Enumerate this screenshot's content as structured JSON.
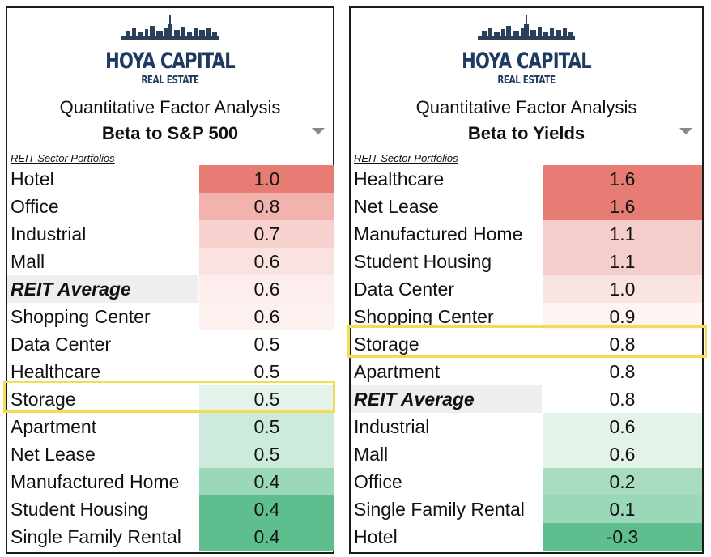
{
  "chart_data": [
    {
      "type": "table",
      "brand": {
        "name": "HOYA CAPITAL",
        "sub": "REAL ESTATE"
      },
      "title": "Quantitative Factor Analysis",
      "subtitle": "Beta to S&P 500",
      "section_label": "REIT Sector Portfolios",
      "highlighted": "Storage",
      "rows": [
        {
          "name": "Hotel",
          "value": "1.0",
          "color": "#e67c73"
        },
        {
          "name": "Office",
          "value": "0.8",
          "color": "#f2b3ae"
        },
        {
          "name": "Industrial",
          "value": "0.7",
          "color": "#f7d2cf"
        },
        {
          "name": "Mall",
          "value": "0.6",
          "color": "#fae2e0"
        },
        {
          "name": "REIT Average",
          "value": "0.6",
          "color": "#fdeeed",
          "average": true
        },
        {
          "name": "Shopping Center",
          "value": "0.6",
          "color": "#fdf1f0"
        },
        {
          "name": "Data Center",
          "value": "0.5",
          "color": "#ffffff"
        },
        {
          "name": "Healthcare",
          "value": "0.5",
          "color": "#ffffff"
        },
        {
          "name": "Storage",
          "value": "0.5",
          "color": "#e3f3ea"
        },
        {
          "name": "Apartment",
          "value": "0.5",
          "color": "#cdebdc"
        },
        {
          "name": "Net Lease",
          "value": "0.5",
          "color": "#cdebdc"
        },
        {
          "name": "Manufactured Home",
          "value": "0.4",
          "color": "#9bd7b9"
        },
        {
          "name": "Student Housing",
          "value": "0.4",
          "color": "#5fbe8e"
        },
        {
          "name": "Single Family Rental",
          "value": "0.4",
          "color": "#5fbe8e"
        }
      ]
    },
    {
      "type": "table",
      "brand": {
        "name": "HOYA CAPITAL",
        "sub": "REAL ESTATE"
      },
      "title": "Quantitative Factor Analysis",
      "subtitle": "Beta to Yields",
      "section_label": "REIT Sector Portfolios",
      "highlighted": "Storage",
      "rows": [
        {
          "name": "Healthcare",
          "value": "1.6",
          "color": "#e67c73"
        },
        {
          "name": "Net Lease",
          "value": "1.6",
          "color": "#e67c73"
        },
        {
          "name": "Manufactured Home",
          "value": "1.1",
          "color": "#f5cdca"
        },
        {
          "name": "Student Housing",
          "value": "1.1",
          "color": "#f5cdca"
        },
        {
          "name": "Data Center",
          "value": "1.0",
          "color": "#fae4e2"
        },
        {
          "name": "Shopping Center",
          "value": "0.9",
          "color": "#fdf4f3"
        },
        {
          "name": "Storage",
          "value": "0.8",
          "color": "#ffffff"
        },
        {
          "name": "Apartment",
          "value": "0.8",
          "color": "#ffffff"
        },
        {
          "name": "REIT Average",
          "value": "0.8",
          "color": "#ffffff",
          "average": true
        },
        {
          "name": "Industrial",
          "value": "0.6",
          "color": "#e3f3ea"
        },
        {
          "name": "Mall",
          "value": "0.6",
          "color": "#e3f3ea"
        },
        {
          "name": "Office",
          "value": "0.2",
          "color": "#a7dcc1"
        },
        {
          "name": "Single Family Rental",
          "value": "0.1",
          "color": "#9bd7b9"
        },
        {
          "name": "Hotel",
          "value": "-0.3",
          "color": "#5fbe8e"
        }
      ]
    }
  ]
}
